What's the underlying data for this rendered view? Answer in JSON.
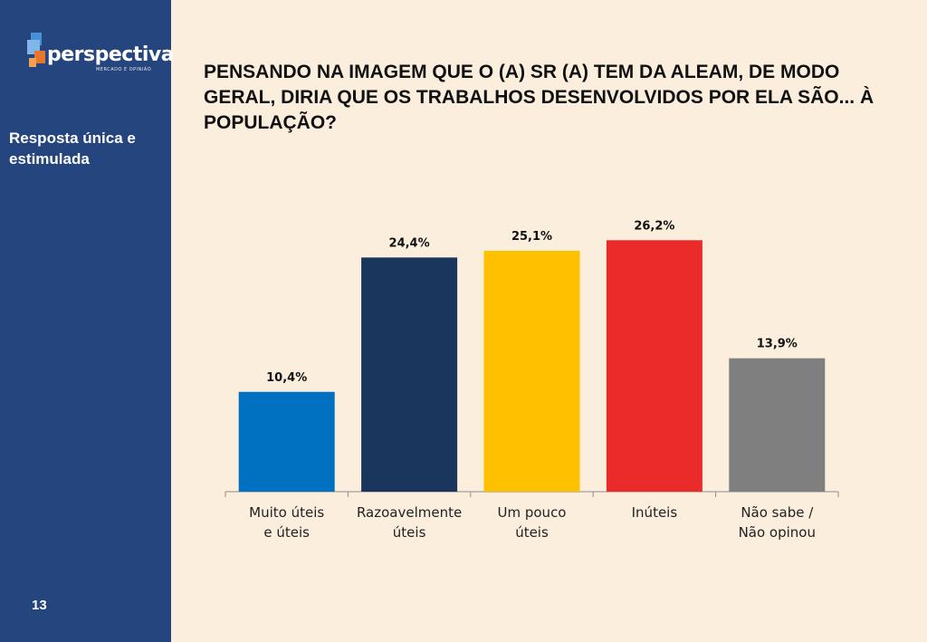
{
  "sidebar": {
    "logo": {
      "name": "perspectiva",
      "tagline": "MERCADO E OPINIÃO"
    },
    "response_type": "Resposta única e estimulada",
    "page_number": "13"
  },
  "question": "PENSANDO NA IMAGEM QUE O (A) SR (A) TEM DA ALEAM, DE MODO GERAL, DIRIA QUE OS TRABALHOS DESENVOLVIDOS POR ELA SÃO... À POPULAÇÃO?",
  "colors": {
    "background": "#fbeedd",
    "sidebar": "#25457f",
    "bars": [
      "#0070c0",
      "#1b365d",
      "#ffc000",
      "#eb2a2a",
      "#7f7f7f"
    ]
  },
  "chart_data": {
    "type": "bar",
    "title": "",
    "xlabel": "",
    "ylabel": "",
    "categories": [
      [
        "Muito úteis",
        "e úteis"
      ],
      [
        "Razoavelmente",
        "úteis"
      ],
      [
        "Um pouco",
        "úteis"
      ],
      [
        "Inúteis"
      ],
      [
        "Não sabe /",
        "Não opinou"
      ]
    ],
    "values": [
      10.4,
      24.4,
      25.1,
      26.2,
      13.9
    ],
    "value_labels": [
      "10,4%",
      "24,4%",
      "25,1%",
      "26,2%",
      "13,9%"
    ],
    "ylim": [
      0,
      30
    ],
    "grid": false,
    "legend": "none"
  }
}
